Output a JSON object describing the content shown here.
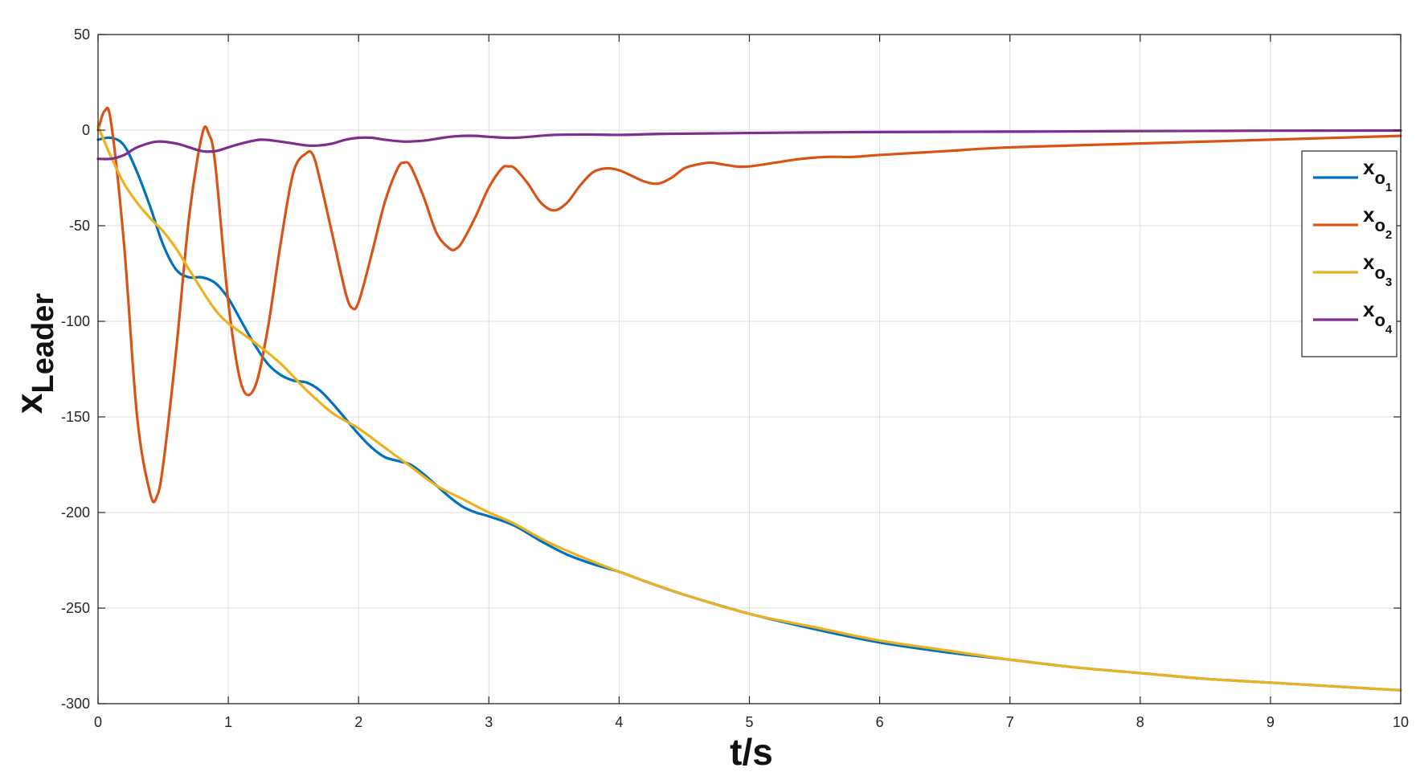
{
  "chart_data": {
    "type": "line",
    "title": "",
    "xlabel": "t/s",
    "ylabel": {
      "base": "x",
      "sub": "Leader"
    },
    "xlim": [
      0,
      10
    ],
    "ylim": [
      -300,
      50
    ],
    "xticks": [
      0,
      1,
      2,
      3,
      4,
      5,
      6,
      7,
      8,
      9,
      10
    ],
    "yticks": [
      50,
      0,
      -50,
      -100,
      -150,
      -200,
      -250,
      -300
    ],
    "grid": true,
    "legend_position": "right",
    "series": [
      {
        "name": "x_o1",
        "label_base": "x",
        "label_sub": "o",
        "label_index": "1",
        "color": "#0072BD",
        "x": [
          0,
          0.1,
          0.2,
          0.3,
          0.4,
          0.5,
          0.6,
          0.7,
          0.8,
          0.9,
          1.0,
          1.1,
          1.2,
          1.3,
          1.4,
          1.5,
          1.6,
          1.7,
          1.8,
          1.9,
          2.0,
          2.1,
          2.2,
          2.3,
          2.4,
          2.5,
          2.6,
          2.7,
          2.8,
          2.9,
          3.0,
          3.2,
          3.4,
          3.6,
          3.8,
          4.0,
          4.2,
          4.5,
          5.0,
          5.5,
          6.0,
          6.5,
          7.0,
          7.5,
          8.0,
          8.5,
          9.0,
          9.5,
          10.0
        ],
        "y": [
          -5,
          -4,
          -8,
          -22,
          -40,
          -60,
          -73,
          -77,
          -77,
          -80,
          -88,
          -100,
          -112,
          -122,
          -128,
          -131,
          -132,
          -136,
          -143,
          -151,
          -159,
          -166,
          -171,
          -173,
          -175,
          -180,
          -186,
          -192,
          -197,
          -200,
          -202,
          -207,
          -215,
          -222,
          -227,
          -231,
          -236,
          -243,
          -253,
          -261,
          -268,
          -273,
          -277,
          -281,
          -284,
          -287,
          -289,
          -291,
          -293
        ]
      },
      {
        "name": "x_o2",
        "label_base": "x",
        "label_sub": "o",
        "label_index": "2",
        "color": "#D95319",
        "x": [
          0,
          0.05,
          0.1,
          0.2,
          0.3,
          0.4,
          0.45,
          0.5,
          0.6,
          0.7,
          0.8,
          0.85,
          0.9,
          1.0,
          1.1,
          1.2,
          1.3,
          1.4,
          1.5,
          1.6,
          1.65,
          1.7,
          1.8,
          1.9,
          1.95,
          2.0,
          2.1,
          2.2,
          2.3,
          2.35,
          2.4,
          2.5,
          2.6,
          2.7,
          2.75,
          2.8,
          2.9,
          3.0,
          3.1,
          3.15,
          3.2,
          3.3,
          3.4,
          3.5,
          3.6,
          3.7,
          3.8,
          3.9,
          4.0,
          4.1,
          4.2,
          4.3,
          4.4,
          4.5,
          4.6,
          4.7,
          4.8,
          4.9,
          5.0,
          5.2,
          5.4,
          5.6,
          5.8,
          6.0,
          6.5,
          7.0,
          8.0,
          9.0,
          10.0
        ],
        "y": [
          0,
          10,
          4,
          -60,
          -150,
          -190,
          -192,
          -175,
          -115,
          -45,
          -2,
          -2,
          -18,
          -90,
          -133,
          -135,
          -105,
          -60,
          -22,
          -12,
          -13,
          -25,
          -55,
          -85,
          -93,
          -90,
          -65,
          -38,
          -20,
          -17,
          -19,
          -35,
          -54,
          -62,
          -62,
          -58,
          -45,
          -30,
          -20,
          -19,
          -20,
          -28,
          -38,
          -42,
          -38,
          -29,
          -22,
          -20,
          -21,
          -24,
          -27,
          -28,
          -25,
          -20,
          -18,
          -17,
          -18,
          -19,
          -19,
          -17,
          -15,
          -14,
          -14,
          -13,
          -11,
          -9,
          -7,
          -5,
          -3
        ]
      },
      {
        "name": "x_o3",
        "label_base": "x",
        "label_sub": "o",
        "label_index": "3",
        "color": "#EDB120",
        "x": [
          0,
          0.1,
          0.2,
          0.3,
          0.4,
          0.5,
          0.6,
          0.7,
          0.8,
          0.9,
          1.0,
          1.2,
          1.4,
          1.6,
          1.8,
          2.0,
          2.2,
          2.4,
          2.6,
          2.8,
          3.0,
          3.2,
          3.5,
          4.0,
          4.5,
          5.0,
          5.5,
          6.0,
          6.5,
          7.0,
          7.5,
          8.0,
          8.5,
          9.0,
          9.5,
          10.0
        ],
        "y": [
          2,
          -14,
          -28,
          -38,
          -46,
          -53,
          -62,
          -73,
          -84,
          -94,
          -101,
          -111,
          -122,
          -136,
          -148,
          -156,
          -166,
          -176,
          -186,
          -193,
          -200,
          -206,
          -217,
          -231,
          -243,
          -253,
          -260,
          -267,
          -272,
          -277,
          -281,
          -284,
          -287,
          -289,
          -291,
          -293
        ]
      },
      {
        "name": "x_o4",
        "label_base": "x",
        "label_sub": "o",
        "label_index": "4",
        "color": "#7E2F8E",
        "x": [
          0,
          0.1,
          0.2,
          0.3,
          0.45,
          0.6,
          0.7,
          0.8,
          0.9,
          1.0,
          1.1,
          1.25,
          1.4,
          1.5,
          1.6,
          1.7,
          1.8,
          1.9,
          2.0,
          2.1,
          2.2,
          2.35,
          2.5,
          2.6,
          2.7,
          2.8,
          2.9,
          3.0,
          3.2,
          3.5,
          3.8,
          4.0,
          4.3,
          4.6,
          5.0,
          5.5,
          6.0,
          7.0,
          8.0,
          9.0,
          10.0
        ],
        "y": [
          -15,
          -15,
          -13,
          -9,
          -6,
          -7,
          -9,
          -11,
          -11,
          -9,
          -7,
          -5,
          -6,
          -7,
          -8,
          -8,
          -7,
          -5,
          -4,
          -4,
          -5,
          -6,
          -5.5,
          -4.5,
          -3.5,
          -3,
          -3,
          -3.5,
          -4,
          -2.5,
          -2.3,
          -2.5,
          -2,
          -1.8,
          -1.5,
          -1.2,
          -1,
          -0.8,
          -0.5,
          -0.3,
          -0.2
        ]
      }
    ]
  }
}
